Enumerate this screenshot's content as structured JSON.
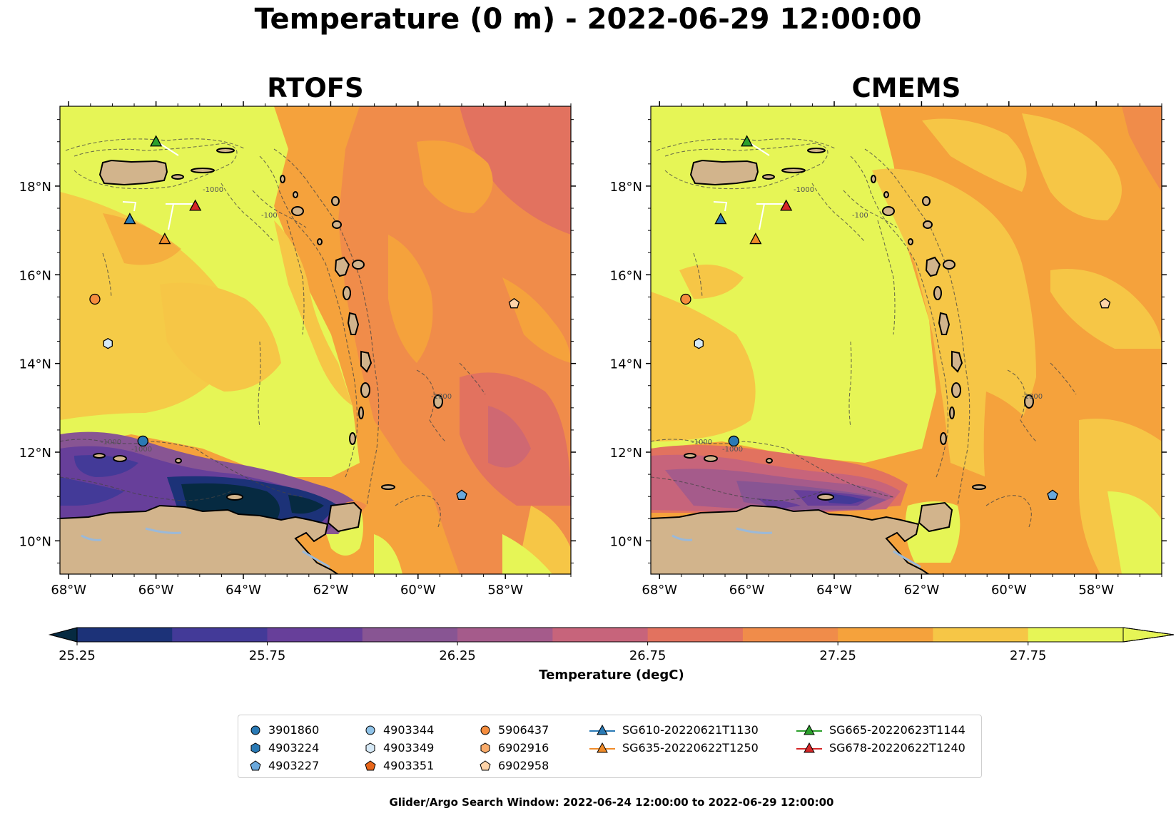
{
  "title": "Temperature (0 m) - 2022-06-29 12:00:00",
  "panels": [
    {
      "title": "RTOFS"
    },
    {
      "title": "CMEMS"
    }
  ],
  "axes": {
    "lat_labels": [
      "18°N",
      "16°N",
      "14°N",
      "12°N",
      "10°N"
    ],
    "lon_labels": [
      "68°W",
      "66°W",
      "64°W",
      "62°W",
      "60°W",
      "58°W"
    ],
    "lon_range": [
      -68.2,
      -56.5
    ],
    "lat_range": [
      9.25,
      19.8
    ]
  },
  "colorbar": {
    "title": "Temperature (degC)",
    "tick_labels": [
      "25.25",
      "25.75",
      "26.25",
      "26.75",
      "27.25",
      "27.75"
    ],
    "levels": [
      25.25,
      25.5,
      25.75,
      26.0,
      26.25,
      26.5,
      26.75,
      27.0,
      27.25,
      27.5,
      27.75,
      28.0
    ],
    "colors": [
      "#062a41",
      "#1c3278",
      "#433a98",
      "#673f9a",
      "#885593",
      "#a55b8b",
      "#c7647b",
      "#e2725f",
      "#f08c4a",
      "#f5a23c",
      "#f6c646",
      "#e6f556"
    ],
    "extend": "both"
  },
  "contour_labels": [
    "-100",
    "-1000"
  ],
  "legend": {
    "argo": [
      {
        "id": "3901860",
        "marker": "circle",
        "color": "#2a7ab5"
      },
      {
        "id": "4903224",
        "marker": "hexagon",
        "color": "#2a7ab5"
      },
      {
        "id": "4903227",
        "marker": "pentagon",
        "color": "#6aa8dc"
      },
      {
        "id": "4903344",
        "marker": "circle",
        "color": "#90c3e8"
      },
      {
        "id": "4903349",
        "marker": "hexagon",
        "color": "#d6e9f6"
      },
      {
        "id": "4903351",
        "marker": "pentagon",
        "color": "#e8661a"
      },
      {
        "id": "5906437",
        "marker": "circle",
        "color": "#f58d3e"
      },
      {
        "id": "6902916",
        "marker": "hexagon",
        "color": "#f9ac6c"
      },
      {
        "id": "6902958",
        "marker": "pentagon",
        "color": "#fdd3a8"
      }
    ],
    "gliders": [
      {
        "id": "SG610-20220621T1130",
        "color": "#2a7ab5"
      },
      {
        "id": "SG635-20220622T1250",
        "color": "#f08b29"
      },
      {
        "id": "SG665-20220623T1144",
        "color": "#2ca02c"
      },
      {
        "id": "SG678-20220622T1240",
        "color": "#d62728"
      }
    ]
  },
  "markers": [
    {
      "id": "SG665-20220623T1144",
      "lon": -66.0,
      "lat": 19.0
    },
    {
      "id": "SG610-20220621T1130",
      "lon": -66.6,
      "lat": 17.25
    },
    {
      "id": "SG635-20220622T1250",
      "lon": -65.8,
      "lat": 16.8
    },
    {
      "id": "SG678-20220622T1240",
      "lon": -65.1,
      "lat": 17.55
    },
    {
      "id": "5906437",
      "lon": -67.4,
      "lat": 15.45
    },
    {
      "id": "4903349",
      "lon": -67.1,
      "lat": 14.45
    },
    {
      "id": "3901860",
      "lon": -66.3,
      "lat": 12.25
    },
    {
      "id": "4903227",
      "lon": -59.0,
      "lat": 11.03
    },
    {
      "id": "6902958",
      "lon": -57.8,
      "lat": 15.35
    }
  ],
  "footer": "Glider/Argo Search Window: 2022-06-24 12:00:00 to 2022-06-29 12:00:00"
}
